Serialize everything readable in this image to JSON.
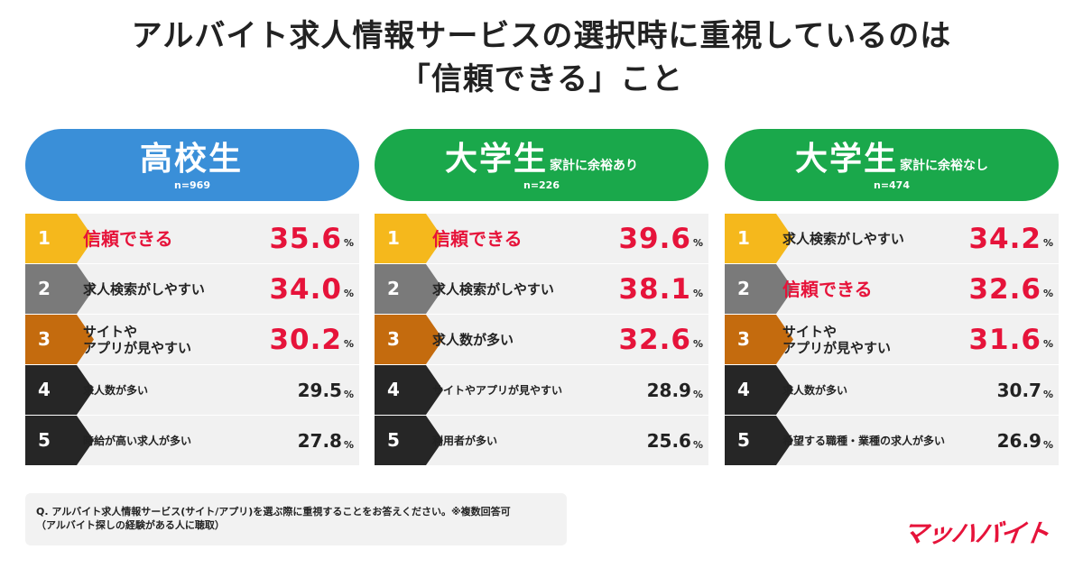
{
  "title_line1": "アルバイト求人情報サービスの選択時に重視しているのは",
  "title_line2": "「信頼できる」こと",
  "colors": {
    "blue": "#3a8fd8",
    "green": "#1aa84b",
    "accent": "#e6133a",
    "rank1": "#f5b81c",
    "rank2": "#7a7a7a",
    "rank3": "#c46b0e",
    "rank_other": "#262626"
  },
  "chart_data": [
    {
      "type": "table",
      "header": {
        "main": "高校生",
        "sub": "",
        "n": "n=969",
        "color": "#3a8fd8"
      },
      "rows": [
        {
          "rank": "1",
          "label": "信頼できる",
          "value": 35.6,
          "value_text": "35.6",
          "unit": "%",
          "highlight": true
        },
        {
          "rank": "2",
          "label": "求人検索がしやすい",
          "value": 34.0,
          "value_text": "34.0",
          "unit": "%",
          "highlight": false
        },
        {
          "rank": "3",
          "label": "サイトや\nアプリが見やすい",
          "value": 30.2,
          "value_text": "30.2",
          "unit": "%",
          "highlight": false
        },
        {
          "rank": "4",
          "label": "求人数が多い",
          "value": 29.5,
          "value_text": "29.5",
          "unit": "%",
          "highlight": false
        },
        {
          "rank": "5",
          "label": "時給が高い求人が多い",
          "value": 27.8,
          "value_text": "27.8",
          "unit": "%",
          "highlight": false
        }
      ]
    },
    {
      "type": "table",
      "header": {
        "main": "大学生",
        "sub": "家計に余裕あり",
        "n": "n=226",
        "color": "#1aa84b"
      },
      "rows": [
        {
          "rank": "1",
          "label": "信頼できる",
          "value": 39.6,
          "value_text": "39.6",
          "unit": "%",
          "highlight": true
        },
        {
          "rank": "2",
          "label": "求人検索がしやすい",
          "value": 38.1,
          "value_text": "38.1",
          "unit": "%",
          "highlight": false
        },
        {
          "rank": "3",
          "label": "求人数が多い",
          "value": 32.6,
          "value_text": "32.6",
          "unit": "%",
          "highlight": false
        },
        {
          "rank": "4",
          "label": "サイトやアプリが見やすい",
          "value": 28.9,
          "value_text": "28.9",
          "unit": "%",
          "highlight": false
        },
        {
          "rank": "5",
          "label": "利用者が多い",
          "value": 25.6,
          "value_text": "25.6",
          "unit": "%",
          "highlight": false
        }
      ]
    },
    {
      "type": "table",
      "header": {
        "main": "大学生",
        "sub": "家計に余裕なし",
        "n": "n=474",
        "color": "#1aa84b"
      },
      "rows": [
        {
          "rank": "1",
          "label": "求人検索がしやすい",
          "value": 34.2,
          "value_text": "34.2",
          "unit": "%",
          "highlight": false
        },
        {
          "rank": "2",
          "label": "信頼できる",
          "value": 32.6,
          "value_text": "32.6",
          "unit": "%",
          "highlight": true
        },
        {
          "rank": "3",
          "label": "サイトや\nアプリが見やすい",
          "value": 31.6,
          "value_text": "31.6",
          "unit": "%",
          "highlight": false
        },
        {
          "rank": "4",
          "label": "求人数が多い",
          "value": 30.7,
          "value_text": "30.7",
          "unit": "%",
          "highlight": false
        },
        {
          "rank": "5",
          "label": "希望する職種・業種の求人が多い",
          "value": 26.9,
          "value_text": "26.9",
          "unit": "%",
          "highlight": false
        }
      ]
    }
  ],
  "note": {
    "line1": "Q. アルバイト求人情報サービス(サイト/アプリ)を選ぶ際に重視することをお答えください。※複数回答可",
    "line2": "（アルバイト探しの経験がある人に聴取）"
  },
  "logo": "マッハバイト"
}
